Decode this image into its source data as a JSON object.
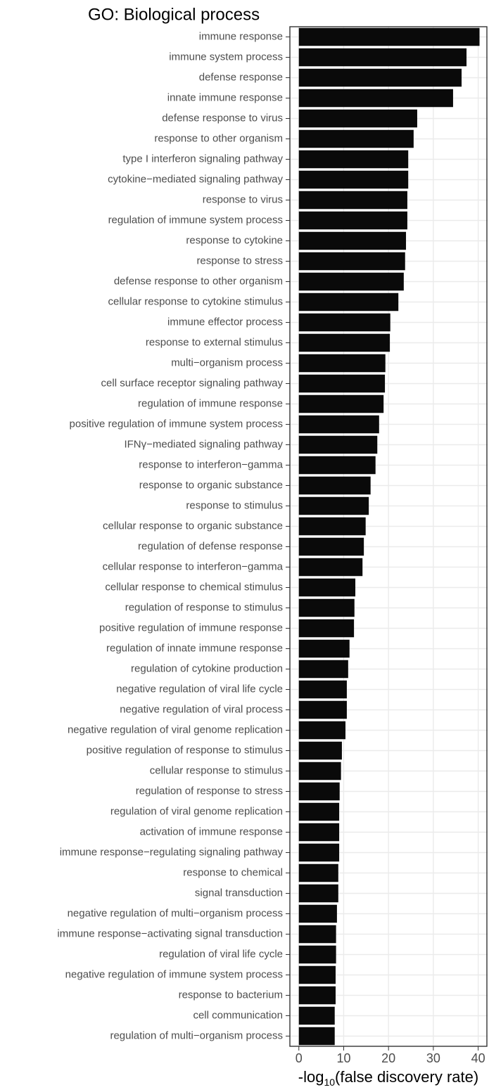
{
  "chart_data": {
    "type": "barh",
    "title": "GO: Biological process",
    "x_label": {
      "prefix": "-log",
      "subscript": "10",
      "suffix": "(false discovery rate)"
    },
    "categories": [
      "immune response",
      "immune system process",
      "defense response",
      "innate immune response",
      "defense response to virus",
      "response to other organism",
      "type I interferon signaling pathway",
      "cytokine−mediated signaling pathway",
      "response to virus",
      "regulation of immune system process",
      "response to cytokine",
      "response to stress",
      "defense response to other organism",
      "cellular response to cytokine stimulus",
      "immune effector process",
      "response to external stimulus",
      "multi−organism process",
      "cell surface receptor signaling pathway",
      "regulation of immune response",
      "positive regulation of immune system process",
      "IFNγ−mediated signaling pathway",
      "response to interferon−gamma",
      "response to organic substance",
      "response to stimulus",
      "cellular response to organic substance",
      "regulation of defense response",
      "cellular response to interferon−gamma",
      "cellular response to chemical stimulus",
      "regulation of response to stimulus",
      "positive regulation of immune response",
      "regulation of innate immune response",
      "regulation of cytokine production",
      "negative regulation of viral life cycle",
      "negative regulation of viral process",
      "negative regulation of viral genome replication",
      "positive regulation of response to stimulus",
      "cellular response to stimulus",
      "regulation of response to stress",
      "regulation of viral genome replication",
      "activation of immune response",
      "immune response−regulating signaling pathway",
      "response to chemical",
      "signal transduction",
      "negative regulation of multi−organism process",
      "immune response−activating signal transduction",
      "regulation of viral life cycle",
      "negative regulation of immune system process",
      "response to bacterium",
      "cell communication",
      "regulation of multi−organism process"
    ],
    "values": [
      40.3,
      37.4,
      36.3,
      34.4,
      26.4,
      25.6,
      24.4,
      24.4,
      24.2,
      24.2,
      23.9,
      23.7,
      23.4,
      22.2,
      20.4,
      20.3,
      19.3,
      19.2,
      18.9,
      17.9,
      17.5,
      17.1,
      16.0,
      15.6,
      14.9,
      14.5,
      14.2,
      12.6,
      12.4,
      12.3,
      11.3,
      11.0,
      10.7,
      10.7,
      10.4,
      9.6,
      9.4,
      9.1,
      9.0,
      9.0,
      9.0,
      8.8,
      8.8,
      8.5,
      8.3,
      8.3,
      8.2,
      8.2,
      8.0,
      8.0
    ],
    "color": "#0a0a0a",
    "xlim": [
      -2.0,
      42.1
    ],
    "xticks": [
      0,
      10,
      20,
      30,
      40
    ],
    "grid": true
  }
}
